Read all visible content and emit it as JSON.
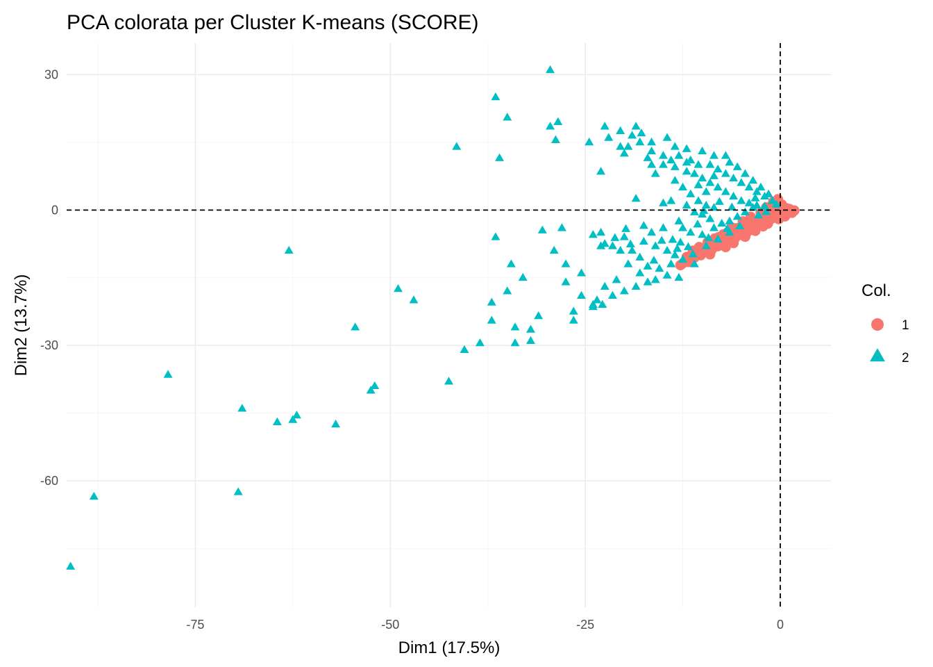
{
  "chart_data": {
    "type": "scatter",
    "title": "PCA colorata per Cluster K-means (SCORE)",
    "xlabel": "Dim1 (17.5%)",
    "ylabel": "Dim2 (13.7%)",
    "xlim": [
      -91.5,
      6.5
    ],
    "ylim": [
      -88,
      37
    ],
    "xticks": [
      -75,
      -50,
      -25,
      0
    ],
    "yticks": [
      -60,
      -30,
      0,
      30
    ],
    "xtick_labels": [
      "-75",
      "-50",
      "-25",
      "0"
    ],
    "ytick_labels": [
      "-60",
      "-30",
      "0",
      "30"
    ],
    "reference_lines": {
      "x": 0,
      "y": 0
    },
    "grid": true,
    "legend": {
      "title": "Col.",
      "position": "right"
    },
    "series": [
      {
        "name": "1",
        "shape": "circle",
        "color": "#F8766D",
        "points": [
          [
            -12.5,
            -11.8
          ],
          [
            -11.8,
            -11.0
          ],
          [
            -11.0,
            -10.5
          ],
          [
            -10.2,
            -10.0
          ],
          [
            -9.5,
            -9.3
          ],
          [
            -8.8,
            -8.8
          ],
          [
            -8.0,
            -8.0
          ],
          [
            -7.2,
            -7.5
          ],
          [
            -6.5,
            -6.8
          ],
          [
            -5.8,
            -6.2
          ],
          [
            -5.0,
            -5.5
          ],
          [
            -4.2,
            -4.8
          ],
          [
            -3.5,
            -4.1
          ],
          [
            -2.8,
            -3.4
          ],
          [
            -2.0,
            -2.8
          ],
          [
            -1.2,
            -2.0
          ],
          [
            -0.5,
            -1.3
          ],
          [
            0.3,
            -0.8
          ],
          [
            1.0,
            -0.3
          ],
          [
            1.5,
            -0.6
          ],
          [
            -11.5,
            -10.2
          ],
          [
            -10.5,
            -9.5
          ],
          [
            -9.8,
            -8.6
          ],
          [
            -8.7,
            -7.9
          ],
          [
            -7.6,
            -7.0
          ],
          [
            -6.6,
            -6.0
          ],
          [
            -5.7,
            -5.2
          ],
          [
            -4.6,
            -4.4
          ],
          [
            -3.6,
            -3.5
          ],
          [
            -2.6,
            -2.6
          ],
          [
            -1.7,
            -1.9
          ],
          [
            -0.8,
            -1.0
          ],
          [
            0.0,
            -0.4
          ],
          [
            0.8,
            0.4
          ],
          [
            0.2,
            1.2
          ],
          [
            -0.4,
            0.2
          ],
          [
            -1.2,
            -0.8
          ],
          [
            -2.1,
            -1.6
          ],
          [
            -3.0,
            -2.3
          ],
          [
            -4.0,
            -3.0
          ],
          [
            -5.1,
            -3.8
          ],
          [
            -6.2,
            -4.6
          ],
          [
            -7.3,
            -5.4
          ],
          [
            -8.4,
            -6.3
          ],
          [
            -9.3,
            -7.1
          ],
          [
            -10.4,
            -8.2
          ],
          [
            -11.2,
            -9.0
          ],
          [
            -12.0,
            -10.4
          ],
          [
            -9.0,
            -9.8
          ],
          [
            -7.0,
            -8.2
          ],
          [
            -6.0,
            -7.3
          ],
          [
            -4.5,
            -5.9
          ],
          [
            -3.2,
            -4.6
          ],
          [
            -1.6,
            -3.0
          ],
          [
            -0.2,
            -2.0
          ],
          [
            0.6,
            -1.4
          ],
          [
            1.2,
            0.2
          ],
          [
            -0.9,
            1.8
          ],
          [
            -0.3,
            2.4
          ],
          [
            -1.8,
            0.6
          ],
          [
            -2.5,
            -0.6
          ],
          [
            -3.8,
            -1.5
          ],
          [
            -2.2,
            -3.6
          ],
          [
            -4.8,
            -2.5
          ],
          [
            -5.5,
            -4.0
          ],
          [
            -6.8,
            -5.0
          ],
          [
            -7.9,
            -6.0
          ],
          [
            -8.3,
            -7.4
          ],
          [
            -10.0,
            -9.0
          ],
          [
            -11.8,
            -11.5
          ],
          [
            -12.8,
            -12.2
          ],
          [
            -6.2,
            -3.9
          ],
          [
            -4.2,
            -3.2
          ],
          [
            -1.0,
            -0.2
          ],
          [
            1.8,
            -0.1
          ]
        ]
      },
      {
        "name": "2",
        "shape": "triangle",
        "color": "#00BFC4",
        "points": [
          [
            -29.5,
            31
          ],
          [
            -36.5,
            25
          ],
          [
            -35,
            20.5
          ],
          [
            -29.5,
            18.5
          ],
          [
            -28.5,
            19.5
          ],
          [
            -28.8,
            15.5
          ],
          [
            -41.5,
            14
          ],
          [
            -36,
            11.5
          ],
          [
            -22.5,
            18.5
          ],
          [
            -24.5,
            15
          ],
          [
            -20.5,
            17.5
          ],
          [
            -22,
            16
          ],
          [
            -19,
            16.5
          ],
          [
            -18.5,
            18.5
          ],
          [
            -17.8,
            17
          ],
          [
            -16.5,
            15
          ],
          [
            -14.5,
            16
          ],
          [
            -13.5,
            14
          ],
          [
            -12,
            13.5
          ],
          [
            -10,
            13
          ],
          [
            -8.5,
            12
          ],
          [
            -7,
            12
          ],
          [
            -19.5,
            14
          ],
          [
            -18,
            15
          ],
          [
            -16.5,
            13
          ],
          [
            -15,
            12
          ],
          [
            -13,
            12
          ],
          [
            -11.5,
            11
          ],
          [
            -10.5,
            10
          ],
          [
            -9,
            10
          ],
          [
            -8,
            9
          ],
          [
            -7,
            8
          ],
          [
            -6,
            7
          ],
          [
            -5,
            6
          ],
          [
            -4,
            5
          ],
          [
            -3,
            4
          ],
          [
            -2,
            3
          ],
          [
            -1,
            2
          ],
          [
            -23,
            8.5
          ],
          [
            -20.5,
            14
          ],
          [
            -20,
            12.5
          ],
          [
            -17,
            11.5
          ],
          [
            -15,
            10
          ],
          [
            -13.5,
            9.5
          ],
          [
            -12,
            8.5
          ],
          [
            -11,
            8
          ],
          [
            -10,
            7
          ],
          [
            -9,
            6
          ],
          [
            -8,
            5
          ],
          [
            -7,
            4
          ],
          [
            -6,
            3
          ],
          [
            -5,
            2
          ],
          [
            -4,
            1.5
          ],
          [
            -3,
            1
          ],
          [
            -2,
            0.8
          ],
          [
            -13.5,
            6.5
          ],
          [
            -12.5,
            5
          ],
          [
            -11.5,
            3.5
          ],
          [
            -10.5,
            2
          ],
          [
            -9.5,
            1
          ],
          [
            -8.5,
            0.5
          ],
          [
            -14,
            2
          ],
          [
            -15,
            1.5
          ],
          [
            -12,
            1
          ],
          [
            -11,
            -0.5
          ],
          [
            -10,
            -1
          ],
          [
            -9,
            -2
          ],
          [
            -18.5,
            2.5
          ],
          [
            -13,
            -2.5
          ],
          [
            -12.5,
            -4
          ],
          [
            -11.5,
            -5
          ],
          [
            -10,
            -5.5
          ],
          [
            -8.5,
            -4
          ],
          [
            -7.5,
            -3
          ],
          [
            -6.5,
            -2.5
          ],
          [
            -5.5,
            -1.5
          ],
          [
            -4.5,
            -0.5
          ],
          [
            -3.5,
            0.5
          ],
          [
            -15,
            -4
          ],
          [
            -16.5,
            -5
          ],
          [
            -17.5,
            -7
          ],
          [
            -16,
            -8
          ],
          [
            -14.5,
            -9
          ],
          [
            -13.5,
            -10
          ],
          [
            -12.5,
            -11
          ],
          [
            -14,
            -12
          ],
          [
            -15.5,
            -13
          ],
          [
            -17,
            -12.5
          ],
          [
            -18,
            -14
          ],
          [
            -19.5,
            -12
          ],
          [
            -20.5,
            -9
          ],
          [
            -21.5,
            -8
          ],
          [
            -22.5,
            -7.5
          ],
          [
            -24,
            -5.5
          ],
          [
            -23,
            -5
          ],
          [
            -20,
            -6
          ],
          [
            -19,
            -9
          ],
          [
            -18,
            -10.5
          ],
          [
            -17,
            -16
          ],
          [
            -18.5,
            -17
          ],
          [
            -20,
            -18
          ],
          [
            -21,
            -15.5
          ],
          [
            -21.5,
            -19
          ],
          [
            -22.5,
            -17
          ],
          [
            -23.5,
            -20
          ],
          [
            -24,
            -21.5
          ],
          [
            -25.5,
            -19
          ],
          [
            -26.5,
            -22.5
          ],
          [
            -26.5,
            -24.5
          ],
          [
            -27.5,
            -16
          ],
          [
            -29,
            -9
          ],
          [
            -27.5,
            -12
          ],
          [
            -25.5,
            -14
          ],
          [
            -22.8,
            -21
          ],
          [
            -16,
            -15.5
          ],
          [
            -14.5,
            -14.5
          ],
          [
            -13,
            -15
          ],
          [
            -11,
            -12
          ],
          [
            -9.5,
            -8
          ],
          [
            -8,
            -6.5
          ],
          [
            -6.5,
            -5
          ],
          [
            -24,
            -21
          ],
          [
            -28,
            -4
          ],
          [
            -23,
            -8
          ],
          [
            -35,
            -18
          ],
          [
            -37,
            -20.5
          ],
          [
            -37,
            -24.5
          ],
          [
            -34,
            -26
          ],
          [
            -32,
            -26.5
          ],
          [
            -31,
            -23.5
          ],
          [
            -34,
            -29.5
          ],
          [
            -32,
            -29
          ],
          [
            -38.5,
            -29.5
          ],
          [
            -40.5,
            -31
          ],
          [
            -42.5,
            -38
          ],
          [
            -36.5,
            -6
          ],
          [
            -49,
            -17.5
          ],
          [
            -47,
            -20
          ],
          [
            -54.5,
            -26
          ],
          [
            -52,
            -39
          ],
          [
            -52.5,
            -40
          ],
          [
            -57,
            -47.5
          ],
          [
            -62,
            -45.5
          ],
          [
            -62.5,
            -46.5
          ],
          [
            -64.5,
            -47
          ],
          [
            -63,
            -9
          ],
          [
            -69,
            -44
          ],
          [
            -69.5,
            -62.5
          ],
          [
            -78.5,
            -36.5
          ],
          [
            -88,
            -63.5
          ],
          [
            -91,
            -79
          ],
          [
            -33,
            -15
          ],
          [
            -34.5,
            -12
          ],
          [
            -30.5,
            -4.5
          ],
          [
            -5.5,
            9.5
          ],
          [
            -4.5,
            8
          ],
          [
            -3.5,
            6.5
          ],
          [
            -2.5,
            5
          ],
          [
            -1.5,
            3.5
          ],
          [
            -6.5,
            10.5
          ],
          [
            -8.5,
            7.5
          ],
          [
            -9.5,
            4
          ],
          [
            -10.5,
            5.5
          ],
          [
            -12,
            10.5
          ],
          [
            -14,
            11
          ],
          [
            -16,
            8
          ],
          [
            -16.5,
            10
          ],
          [
            -3.2,
            2.6
          ],
          [
            -0.5,
            1.2
          ],
          [
            -1.8,
            -0.4
          ],
          [
            -2.8,
            -1.2
          ],
          [
            -5.2,
            -3.6
          ],
          [
            -6.8,
            -4.2
          ],
          [
            -9.2,
            -6.2
          ],
          [
            -11.8,
            -8.2
          ],
          [
            -13.8,
            -6.6
          ],
          [
            -11.2,
            -9.8
          ],
          [
            -13.2,
            -8.6
          ],
          [
            -7.8,
            1.8
          ],
          [
            -6.2,
            0.6
          ],
          [
            -17.5,
            -3.5
          ],
          [
            -19.8,
            -4.2
          ],
          [
            -21.2,
            -6.2
          ],
          [
            -19.2,
            -7.6
          ],
          [
            -16.2,
            -11.2
          ],
          [
            -15.2,
            -6.8
          ],
          [
            -12.8,
            -7.2
          ],
          [
            -10.6,
            -3.2
          ],
          [
            -9.8,
            -0.2
          ]
        ]
      }
    ]
  }
}
